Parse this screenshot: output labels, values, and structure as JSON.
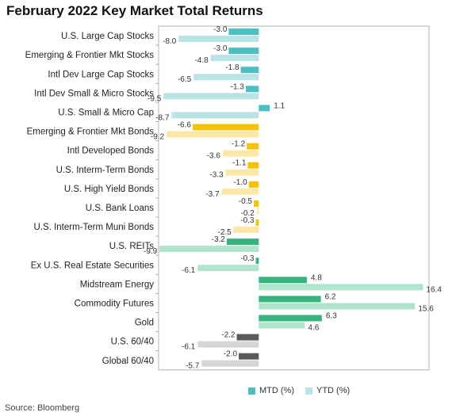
{
  "title": "February 2022 Key Market Total Returns",
  "source": "Source: Bloomberg",
  "colors": {
    "equity_mtd": "#4cbfc4",
    "equity_ytd": "#b8e4e8",
    "bond_mtd": "#f5c400",
    "bond_ytd": "#fbe8a6",
    "real_mtd": "#35b57d",
    "real_ytd": "#b0e4cb",
    "balanced_mtd": "#5a5a5a",
    "balanced_ytd": "#d6d6d6",
    "axis": "#b0b0b0"
  },
  "chart_data": {
    "type": "bar",
    "orientation": "horizontal",
    "xlim": [
      -10,
      17
    ],
    "grid": false,
    "legend_position": "bottom",
    "categories": [
      "U.S. Large Cap Stocks",
      "Emerging & Frontier Mkt Stocks",
      "Intl Dev Large Cap Stocks",
      "Intl Dev Small & Micro Stocks",
      "U.S. Small & Micro Cap",
      "Emerging & Frontier Mkt Bonds",
      "Intl Developed Bonds",
      "U.S. Interm-Term Bonds",
      "U.S. High Yield Bonds",
      "U.S. Bank Loans",
      "U.S. Interm-Term Muni Bonds",
      "U.S. REITs",
      "Ex U.S. Real Estate Securities",
      "Midstream Energy",
      "Commodity Futures",
      "Gold",
      "U.S. 60/40",
      "Global 60/40"
    ],
    "groups": [
      "equity",
      "equity",
      "equity",
      "equity",
      "equity",
      "bond",
      "bond",
      "bond",
      "bond",
      "bond",
      "bond",
      "real",
      "real",
      "real",
      "real",
      "real",
      "balanced",
      "balanced"
    ],
    "series": [
      {
        "name": "MTD (%)",
        "values": [
          -3.0,
          -3.0,
          -1.8,
          -1.3,
          1.1,
          -6.6,
          -1.2,
          -1.1,
          -1.0,
          -0.5,
          -0.3,
          -3.2,
          -0.3,
          4.8,
          6.2,
          6.3,
          -2.2,
          -2.0
        ]
      },
      {
        "name": "YTD (%)",
        "values": [
          -8.0,
          -4.8,
          -6.5,
          -9.5,
          -8.7,
          -9.2,
          -3.6,
          -3.3,
          -3.7,
          -0.2,
          -2.5,
          -9.9,
          -6.1,
          16.4,
          15.6,
          4.6,
          -6.1,
          -5.7
        ]
      }
    ],
    "mtd_labels": [
      "-3.0",
      "-3.0",
      "-1.8",
      "-1.3",
      "1.1",
      "-6.6",
      "-1.2",
      "-1.1",
      "-1.0",
      "-0.5",
      "-0.3",
      "-3.2",
      "-0.3",
      "4.8",
      "6.2",
      "6.3",
      "-2.2",
      "-2.0"
    ],
    "ytd_labels": [
      "-8.0",
      "-4.8",
      "-6.5",
      "-9.5",
      "-8.7",
      "-9.2",
      "-3.6",
      "-3.3",
      "-3.7",
      "-0.2",
      "-2.5",
      "-9.9",
      "-6.1",
      "16.4",
      "15.6",
      "4.6",
      "-6.1",
      "-5.7"
    ]
  }
}
